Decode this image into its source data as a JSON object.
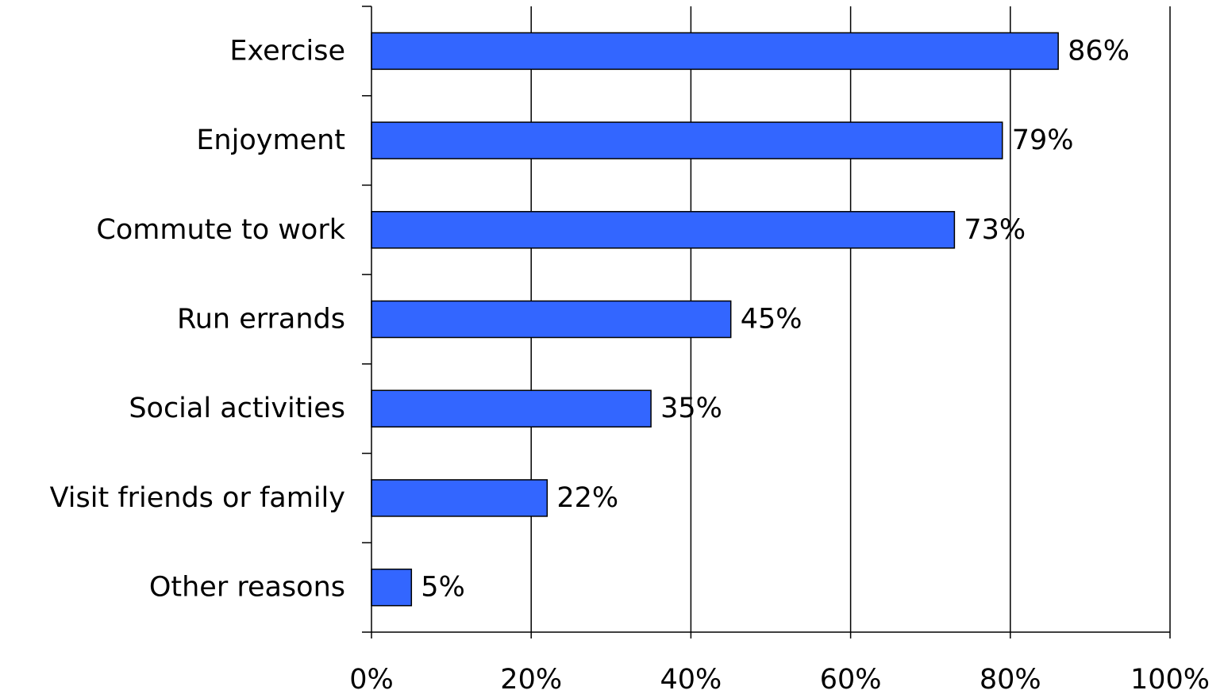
{
  "chart_data": {
    "type": "bar",
    "orientation": "horizontal",
    "categories": [
      "Exercise",
      "Enjoyment",
      "Commute to work",
      "Run errands",
      "Social activities",
      "Visit friends or family",
      "Other reasons"
    ],
    "values": [
      86,
      79,
      73,
      45,
      35,
      22,
      5
    ],
    "value_labels": [
      "86%",
      "79%",
      "73%",
      "45%",
      "35%",
      "22%",
      "5%"
    ],
    "xlim": [
      0,
      100
    ],
    "xticks": [
      0,
      20,
      40,
      60,
      80,
      100
    ],
    "xtick_labels": [
      "0%",
      "20%",
      "40%",
      "60%",
      "80%",
      "100%"
    ],
    "grid": "vertical",
    "legend": "none",
    "bar_color": "#3366ff",
    "bar_edge_color": "#000000",
    "title": "",
    "xlabel": "",
    "ylabel": ""
  }
}
